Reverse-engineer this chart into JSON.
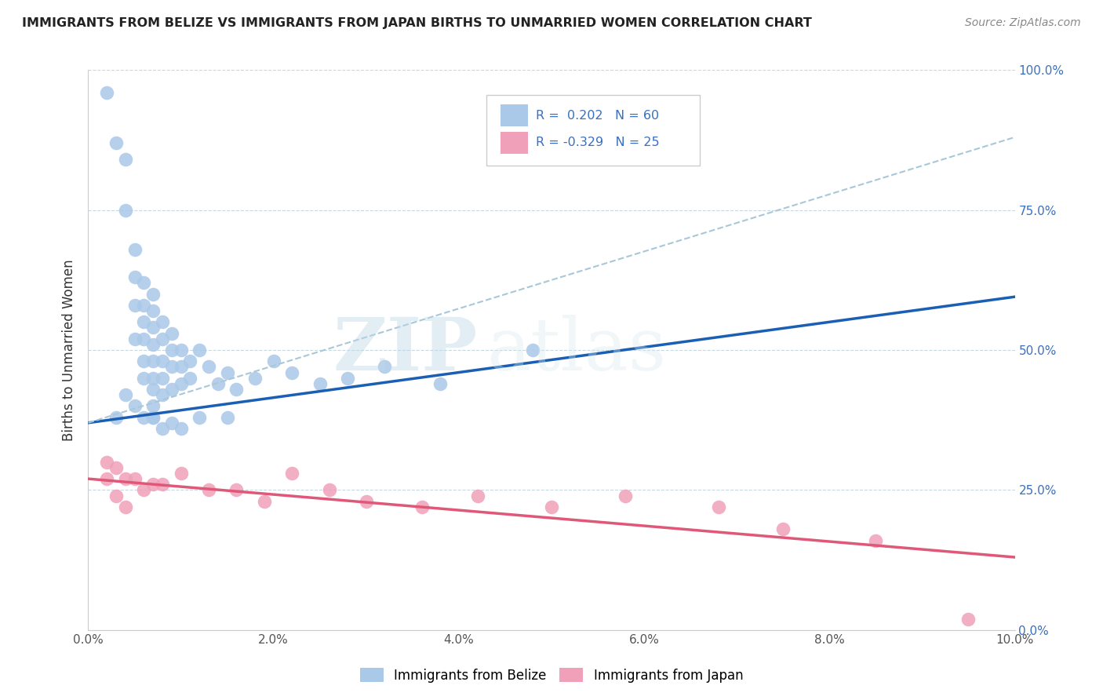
{
  "title": "IMMIGRANTS FROM BELIZE VS IMMIGRANTS FROM JAPAN BIRTHS TO UNMARRIED WOMEN CORRELATION CHART",
  "source": "Source: ZipAtlas.com",
  "watermark": "ZIPatlas",
  "ylabel": "Births to Unmarried Women",
  "xlabel_ticks": [
    "0.0%",
    "2.0%",
    "4.0%",
    "6.0%",
    "8.0%",
    "10.0%"
  ],
  "ylabel_right_ticks": [
    "0.0%",
    "25.0%",
    "50.0%",
    "75.0%",
    "100.0%"
  ],
  "xlim": [
    0.0,
    0.1
  ],
  "ylim": [
    0.0,
    1.0
  ],
  "belize_R": 0.202,
  "belize_N": 60,
  "japan_R": -0.329,
  "japan_N": 25,
  "belize_color": "#aac8e8",
  "belize_line_color": "#1a5fb4",
  "japan_color": "#f0a0b8",
  "japan_line_color": "#e05878",
  "dashed_line_color": "#a8c8d8",
  "background_color": "#ffffff",
  "grid_color": "#c8d8e0",
  "title_color": "#222222",
  "source_color": "#888888",
  "legend_color": "#3a70c0",
  "belize_scatter_x": [
    0.002,
    0.003,
    0.004,
    0.004,
    0.005,
    0.005,
    0.005,
    0.005,
    0.006,
    0.006,
    0.006,
    0.006,
    0.006,
    0.006,
    0.007,
    0.007,
    0.007,
    0.007,
    0.007,
    0.007,
    0.007,
    0.007,
    0.007,
    0.008,
    0.008,
    0.008,
    0.008,
    0.008,
    0.009,
    0.009,
    0.009,
    0.009,
    0.01,
    0.01,
    0.01,
    0.011,
    0.011,
    0.012,
    0.013,
    0.014,
    0.015,
    0.016,
    0.018,
    0.02,
    0.022,
    0.025,
    0.028,
    0.032,
    0.038,
    0.048,
    0.003,
    0.004,
    0.005,
    0.006,
    0.007,
    0.008,
    0.009,
    0.01,
    0.012,
    0.015
  ],
  "belize_scatter_y": [
    0.96,
    0.87,
    0.84,
    0.75,
    0.68,
    0.63,
    0.58,
    0.52,
    0.62,
    0.58,
    0.55,
    0.52,
    0.48,
    0.45,
    0.6,
    0.57,
    0.54,
    0.51,
    0.48,
    0.45,
    0.43,
    0.4,
    0.38,
    0.55,
    0.52,
    0.48,
    0.45,
    0.42,
    0.53,
    0.5,
    0.47,
    0.43,
    0.5,
    0.47,
    0.44,
    0.48,
    0.45,
    0.5,
    0.47,
    0.44,
    0.46,
    0.43,
    0.45,
    0.48,
    0.46,
    0.44,
    0.45,
    0.47,
    0.44,
    0.5,
    0.38,
    0.42,
    0.4,
    0.38,
    0.38,
    0.36,
    0.37,
    0.36,
    0.38,
    0.38
  ],
  "japan_scatter_x": [
    0.002,
    0.002,
    0.003,
    0.003,
    0.004,
    0.004,
    0.005,
    0.006,
    0.007,
    0.008,
    0.01,
    0.013,
    0.016,
    0.019,
    0.022,
    0.026,
    0.03,
    0.036,
    0.042,
    0.05,
    0.058,
    0.068,
    0.075,
    0.085,
    0.095
  ],
  "japan_scatter_y": [
    0.3,
    0.27,
    0.29,
    0.24,
    0.27,
    0.22,
    0.27,
    0.25,
    0.26,
    0.26,
    0.28,
    0.25,
    0.25,
    0.23,
    0.28,
    0.25,
    0.23,
    0.22,
    0.24,
    0.22,
    0.24,
    0.22,
    0.18,
    0.16,
    0.02
  ],
  "belize_trend_x": [
    0.0,
    0.1
  ],
  "belize_trend_y": [
    0.37,
    0.595
  ],
  "japan_trend_x": [
    0.0,
    0.1
  ],
  "japan_trend_y": [
    0.27,
    0.13
  ],
  "dashed_trend_x": [
    0.0,
    0.1
  ],
  "dashed_trend_y": [
    0.37,
    0.88
  ]
}
